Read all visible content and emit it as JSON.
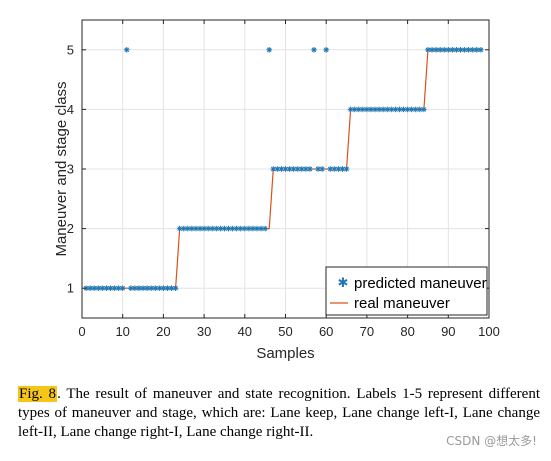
{
  "chart_data": {
    "type": "scatter",
    "title": "",
    "xlabel": "Samples",
    "ylabel": "Maneuver and stage class",
    "xlim": [
      0,
      100
    ],
    "ylim": [
      0.5,
      5.5
    ],
    "xticks": [
      0,
      10,
      20,
      30,
      40,
      50,
      60,
      70,
      80,
      90,
      100
    ],
    "yticks": [
      1,
      2,
      3,
      4,
      5
    ],
    "grid": true,
    "legend_placement": "bottom-right",
    "series": [
      {
        "name": "predicted maneuver",
        "marker": "asterisk",
        "color": "#1f77b4",
        "x": [
          1,
          2,
          3,
          4,
          5,
          6,
          7,
          8,
          9,
          10,
          11,
          12,
          13,
          14,
          15,
          16,
          17,
          18,
          19,
          20,
          21,
          22,
          23,
          24,
          25,
          26,
          27,
          28,
          29,
          30,
          31,
          32,
          33,
          34,
          35,
          36,
          37,
          38,
          39,
          40,
          41,
          42,
          43,
          44,
          45,
          46,
          47,
          48,
          49,
          50,
          51,
          52,
          53,
          54,
          55,
          56,
          57,
          58,
          59,
          60,
          61,
          62,
          63,
          64,
          65,
          66,
          67,
          68,
          69,
          70,
          71,
          72,
          73,
          74,
          75,
          76,
          77,
          78,
          79,
          80,
          81,
          82,
          83,
          84,
          85,
          86,
          87,
          88,
          89,
          90,
          91,
          92,
          93,
          94,
          95,
          96,
          97,
          98
        ],
        "y": [
          1,
          1,
          1,
          1,
          1,
          1,
          1,
          1,
          1,
          1,
          5,
          1,
          1,
          1,
          1,
          1,
          1,
          1,
          1,
          1,
          1,
          1,
          1,
          2,
          2,
          2,
          2,
          2,
          2,
          2,
          2,
          2,
          2,
          2,
          2,
          2,
          2,
          2,
          2,
          2,
          2,
          2,
          2,
          2,
          2,
          5,
          3,
          3,
          3,
          3,
          3,
          3,
          3,
          3,
          3,
          3,
          5,
          3,
          3,
          5,
          3,
          3,
          3,
          3,
          3,
          4,
          4,
          4,
          4,
          4,
          4,
          4,
          4,
          4,
          4,
          4,
          4,
          4,
          4,
          4,
          4,
          4,
          4,
          4,
          5,
          5,
          5,
          5,
          5,
          5,
          5,
          5,
          5,
          5,
          5,
          5,
          5,
          5
        ]
      },
      {
        "name": "real maneuver",
        "color": "#d95319",
        "x": [
          1,
          2,
          3,
          4,
          5,
          6,
          7,
          8,
          9,
          10,
          11,
          12,
          13,
          14,
          15,
          16,
          17,
          18,
          19,
          20,
          21,
          22,
          23,
          24,
          25,
          26,
          27,
          28,
          29,
          30,
          31,
          32,
          33,
          34,
          35,
          36,
          37,
          38,
          39,
          40,
          41,
          42,
          43,
          44,
          45,
          46,
          47,
          48,
          49,
          50,
          51,
          52,
          53,
          54,
          55,
          56,
          57,
          58,
          59,
          60,
          61,
          62,
          63,
          64,
          65,
          66,
          67,
          68,
          69,
          70,
          71,
          72,
          73,
          74,
          75,
          76,
          77,
          78,
          79,
          80,
          81,
          82,
          83,
          84,
          85,
          86,
          87,
          88,
          89,
          90,
          91,
          92,
          93,
          94,
          95,
          96,
          97,
          98
        ],
        "y": [
          1,
          1,
          1,
          1,
          1,
          1,
          1,
          1,
          1,
          1,
          1,
          1,
          1,
          1,
          1,
          1,
          1,
          1,
          1,
          1,
          1,
          1,
          1,
          2,
          2,
          2,
          2,
          2,
          2,
          2,
          2,
          2,
          2,
          2,
          2,
          2,
          2,
          2,
          2,
          2,
          2,
          2,
          2,
          2,
          2,
          2,
          3,
          3,
          3,
          3,
          3,
          3,
          3,
          3,
          3,
          3,
          3,
          3,
          3,
          3,
          3,
          3,
          3,
          3,
          3,
          4,
          4,
          4,
          4,
          4,
          4,
          4,
          4,
          4,
          4,
          4,
          4,
          4,
          4,
          4,
          4,
          4,
          4,
          4,
          5,
          5,
          5,
          5,
          5,
          5,
          5,
          5,
          5,
          5,
          5,
          5,
          5,
          5
        ]
      }
    ]
  },
  "caption": {
    "fig_label": "Fig. 8",
    "text": ".    The result of maneuver and state recognition. Labels 1-5 represent different types of maneuver and stage, which are: Lane keep, Lane change left-I, Lane change left-II, Lane change right-I, Lane change right-II."
  },
  "watermark": "CSDN @想太多!"
}
